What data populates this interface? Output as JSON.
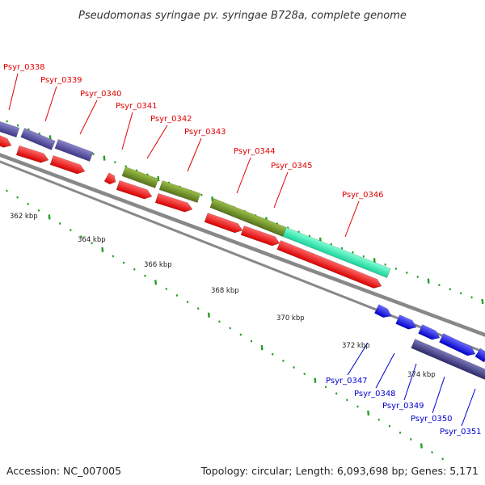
{
  "title": "Pseudomonas syringae pv. syringae B728a, complete genome",
  "footer": {
    "accession": "Accession: NC_007005",
    "summary": "Topology: circular; Length: 6,093,698 bp; Genes: 5,171"
  },
  "colors": {
    "label_top": "#e00000",
    "label_bottom": "#0000cc",
    "forward_cds": "#ff1a1a",
    "tick": "#22a022",
    "backbone": "#888888"
  },
  "tick_labels": [
    "362 kbp",
    "364 kbp",
    "366 kbp",
    "368 kbp",
    "370 kbp",
    "372 kbp",
    "374 kbp"
  ],
  "genes_top": [
    "Psyr_0338",
    "Psyr_0339",
    "Psyr_0340",
    "Psyr_0341",
    "Psyr_0342",
    "Psyr_0343",
    "Psyr_0344",
    "Psyr_0345",
    "Psyr_0346"
  ],
  "genes_bottom": [
    "Psyr_0347",
    "Psyr_0348",
    "Psyr_0349",
    "Psyr_0350",
    "Psyr_0351"
  ]
}
